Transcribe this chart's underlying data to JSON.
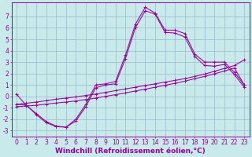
{
  "background_color": "#c8eaea",
  "grid_color": "#99bbcc",
  "line_color": "#990099",
  "xlabel": "Windchill (Refroidissement éolien,°C)",
  "xlabel_fontsize": 6.5,
  "tick_fontsize": 5.5,
  "xlim": [
    -0.5,
    23.5
  ],
  "ylim": [
    -3.5,
    8.2
  ],
  "yticks": [
    -3,
    -2,
    -1,
    0,
    1,
    2,
    3,
    4,
    5,
    6,
    7
  ],
  "xticks": [
    0,
    1,
    2,
    3,
    4,
    5,
    6,
    7,
    8,
    9,
    10,
    11,
    12,
    13,
    14,
    15,
    16,
    17,
    18,
    19,
    20,
    21,
    22,
    23
  ],
  "line1_x": [
    0,
    1,
    2,
    3,
    4,
    5,
    6,
    7,
    8,
    9,
    10,
    11,
    12,
    13,
    14,
    15,
    16,
    17,
    18,
    19,
    20,
    21,
    22,
    23
  ],
  "line1_y": [
    0.2,
    -0.8,
    -1.5,
    -2.2,
    -2.6,
    -2.7,
    -2.0,
    -0.7,
    1.0,
    1.1,
    1.3,
    3.6,
    6.3,
    7.8,
    7.3,
    5.8,
    5.8,
    5.5,
    3.7,
    3.0,
    3.0,
    3.0,
    2.1,
    1.0
  ],
  "line2_x": [
    0,
    1,
    2,
    3,
    4,
    5,
    6,
    7,
    8,
    9,
    10,
    11,
    12,
    13,
    14,
    15,
    16,
    17,
    18,
    19,
    20,
    21,
    22,
    23
  ],
  "line2_y": [
    -0.7,
    -0.75,
    -1.6,
    -2.3,
    -2.65,
    -2.7,
    -2.15,
    -0.9,
    0.75,
    1.0,
    1.1,
    3.3,
    6.0,
    7.5,
    7.2,
    5.6,
    5.55,
    5.2,
    3.5,
    2.7,
    2.65,
    2.8,
    1.9,
    0.8
  ],
  "line3_x": [
    0,
    1,
    2,
    3,
    4,
    5,
    6,
    7,
    8,
    9,
    10,
    11,
    12,
    13,
    14,
    15,
    16,
    17,
    18,
    19,
    20,
    21,
    22,
    23
  ],
  "line3_y": [
    -0.7,
    -0.6,
    -0.5,
    -0.38,
    -0.25,
    -0.15,
    -0.05,
    0.08,
    0.2,
    0.35,
    0.5,
    0.65,
    0.8,
    0.95,
    1.1,
    1.25,
    1.4,
    1.55,
    1.75,
    1.95,
    2.2,
    2.45,
    2.7,
    3.2
  ],
  "line4_x": [
    0,
    1,
    2,
    3,
    4,
    5,
    6,
    7,
    8,
    9,
    10,
    11,
    12,
    13,
    14,
    15,
    16,
    17,
    18,
    19,
    20,
    21,
    22,
    23
  ],
  "line4_y": [
    -0.9,
    -0.85,
    -0.78,
    -0.68,
    -0.58,
    -0.5,
    -0.4,
    -0.28,
    -0.15,
    0.0,
    0.15,
    0.3,
    0.47,
    0.63,
    0.8,
    0.97,
    1.15,
    1.33,
    1.55,
    1.75,
    1.98,
    2.22,
    2.48,
    1.0
  ]
}
